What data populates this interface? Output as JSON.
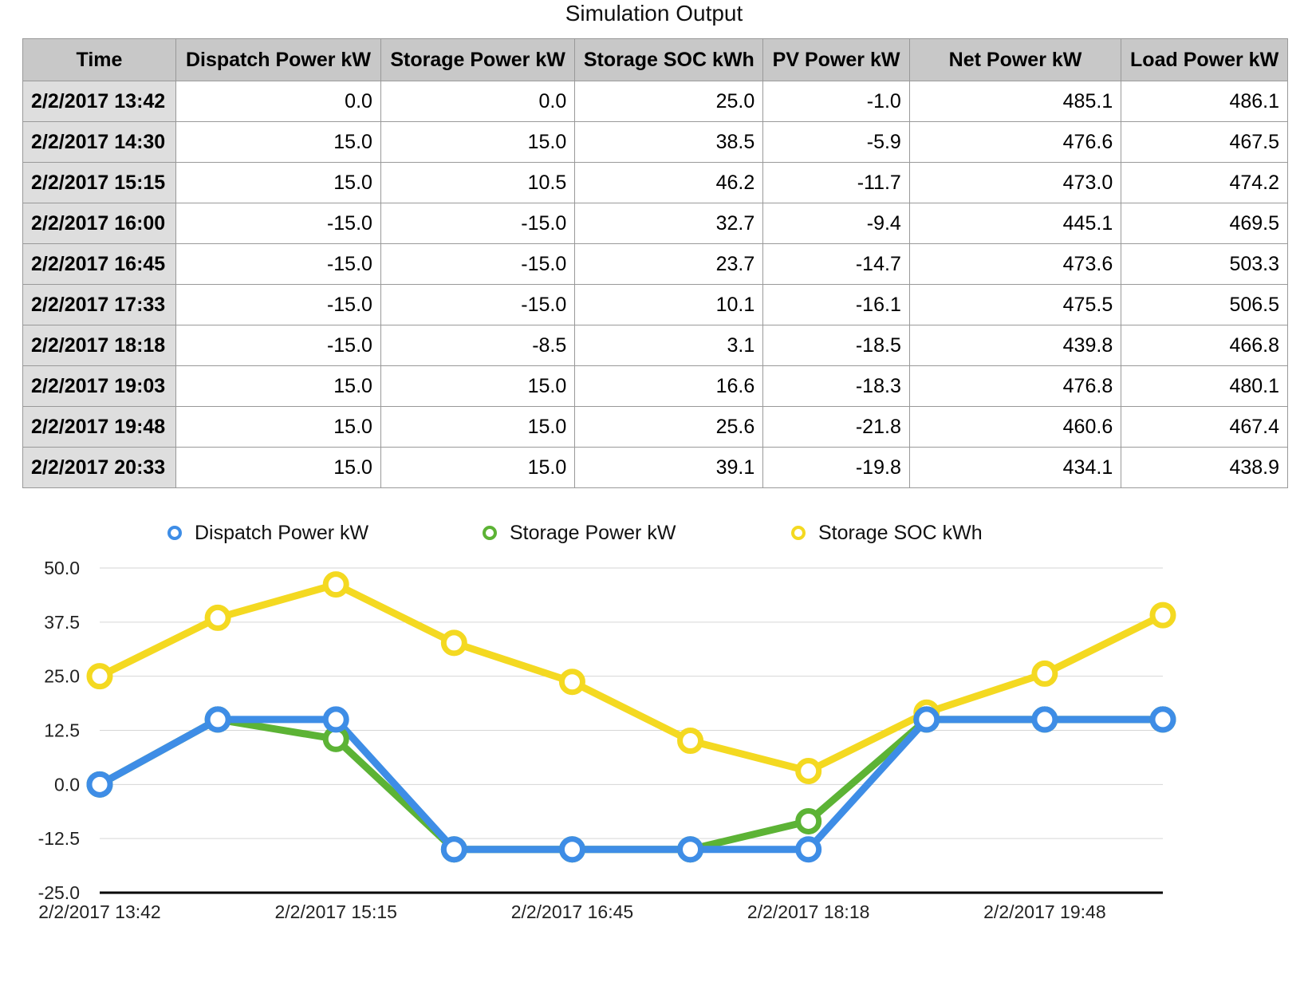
{
  "title": "Simulation Output",
  "table": {
    "columns": [
      "Time",
      "Dispatch Power kW",
      "Storage Power kW",
      "Storage SOC kWh",
      "PV Power kW",
      "Net Power kW",
      "Load Power kW"
    ],
    "rows": [
      [
        "2/2/2017 13:42",
        "0.0",
        "0.0",
        "25.0",
        "-1.0",
        "485.1",
        "486.1"
      ],
      [
        "2/2/2017 14:30",
        "15.0",
        "15.0",
        "38.5",
        "-5.9",
        "476.6",
        "467.5"
      ],
      [
        "2/2/2017 15:15",
        "15.0",
        "10.5",
        "46.2",
        "-11.7",
        "473.0",
        "474.2"
      ],
      [
        "2/2/2017 16:00",
        "-15.0",
        "-15.0",
        "32.7",
        "-9.4",
        "445.1",
        "469.5"
      ],
      [
        "2/2/2017 16:45",
        "-15.0",
        "-15.0",
        "23.7",
        "-14.7",
        "473.6",
        "503.3"
      ],
      [
        "2/2/2017 17:33",
        "-15.0",
        "-15.0",
        "10.1",
        "-16.1",
        "475.5",
        "506.5"
      ],
      [
        "2/2/2017 18:18",
        "-15.0",
        "-8.5",
        "3.1",
        "-18.5",
        "439.8",
        "466.8"
      ],
      [
        "2/2/2017 19:03",
        "15.0",
        "15.0",
        "16.6",
        "-18.3",
        "476.8",
        "480.1"
      ],
      [
        "2/2/2017 19:48",
        "15.0",
        "15.0",
        "25.6",
        "-21.8",
        "460.6",
        "467.4"
      ],
      [
        "2/2/2017 20:33",
        "15.0",
        "15.0",
        "39.1",
        "-19.8",
        "434.1",
        "438.9"
      ]
    ]
  },
  "chart_data": {
    "type": "line",
    "title": "Simulation Output",
    "x": [
      "2/2/2017 13:42",
      "2/2/2017 14:30",
      "2/2/2017 15:15",
      "2/2/2017 16:00",
      "2/2/2017 16:45",
      "2/2/2017 17:33",
      "2/2/2017 18:18",
      "2/2/2017 19:03",
      "2/2/2017 19:48",
      "2/2/2017 20:33"
    ],
    "x_tick_labels": [
      "2/2/2017 13:42",
      "2/2/2017 15:15",
      "2/2/2017 16:45",
      "2/2/2017 18:18",
      "2/2/2017 19:48"
    ],
    "y_tick_labels": [
      "50.0",
      "37.5",
      "25.0",
      "12.5",
      "0.0",
      "-12.5",
      "-25.0"
    ],
    "ylim": [
      -25,
      50
    ],
    "grid": true,
    "legend_position": "top",
    "series": [
      {
        "name": "Storage SOC kWh",
        "color": "#f4d921",
        "values": [
          25.0,
          38.5,
          46.2,
          32.7,
          23.7,
          10.1,
          3.1,
          16.6,
          25.6,
          39.1
        ]
      },
      {
        "name": "Storage Power kW",
        "color": "#5cb335",
        "values": [
          0.0,
          15.0,
          10.5,
          -15.0,
          -15.0,
          -15.0,
          -8.5,
          15.0,
          15.0,
          15.0
        ]
      },
      {
        "name": "Dispatch Power kW",
        "color": "#3e8de6",
        "values": [
          0.0,
          15.0,
          15.0,
          -15.0,
          -15.0,
          -15.0,
          -15.0,
          15.0,
          15.0,
          15.0
        ]
      }
    ],
    "legend": [
      "Dispatch Power kW",
      "Storage Power kW",
      "Storage SOC kWh"
    ]
  }
}
